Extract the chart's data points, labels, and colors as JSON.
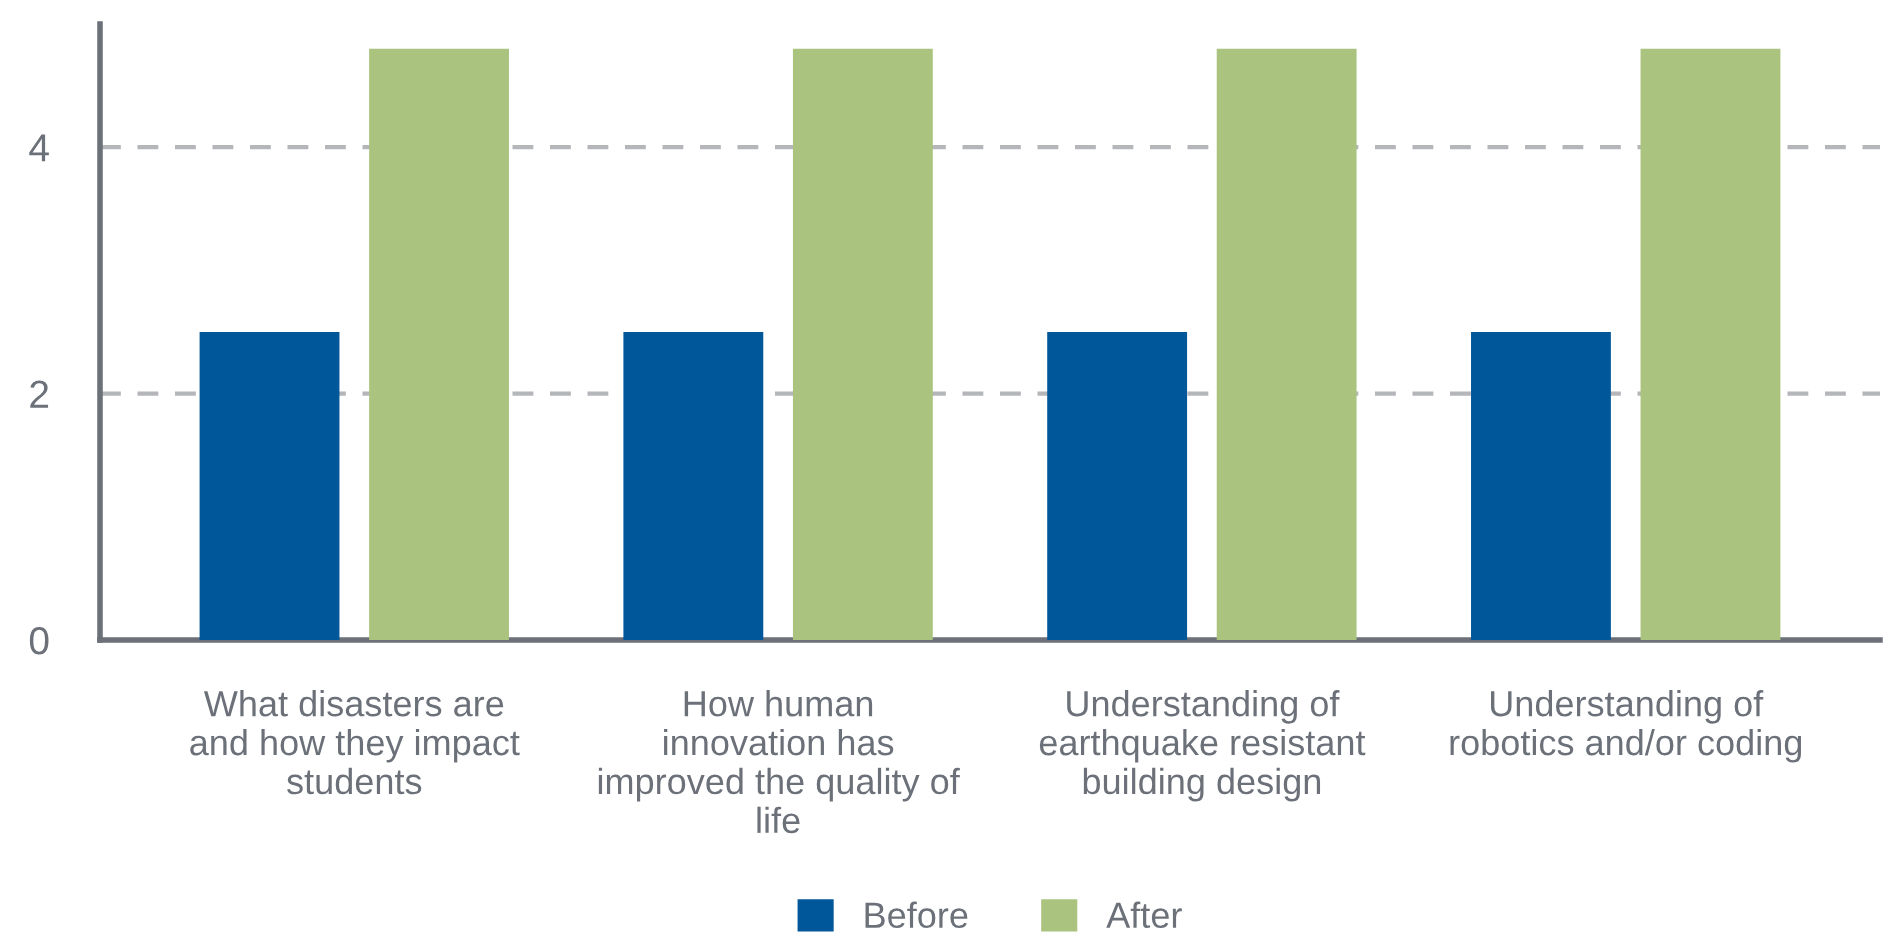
{
  "chart_data": {
    "type": "bar",
    "categories": [
      "What disasters are\nand how they impact\nstudents",
      "How human\ninnovation has\nimproved the quality of\nlife",
      "Understanding of\nearthquake resistant\nbuilding design",
      "Understanding of\nrobotics and/or coding"
    ],
    "series": [
      {
        "name": "Before",
        "color": "#00579a",
        "values": [
          2.5,
          2.5,
          2.5,
          2.5
        ]
      },
      {
        "name": "After",
        "color": "#aac47f",
        "values": [
          4.8,
          4.8,
          4.8,
          4.8
        ]
      }
    ],
    "ylim": [
      0,
      5
    ],
    "yticks": [
      0,
      2,
      4
    ],
    "grid": "y",
    "legend": "bottom"
  }
}
